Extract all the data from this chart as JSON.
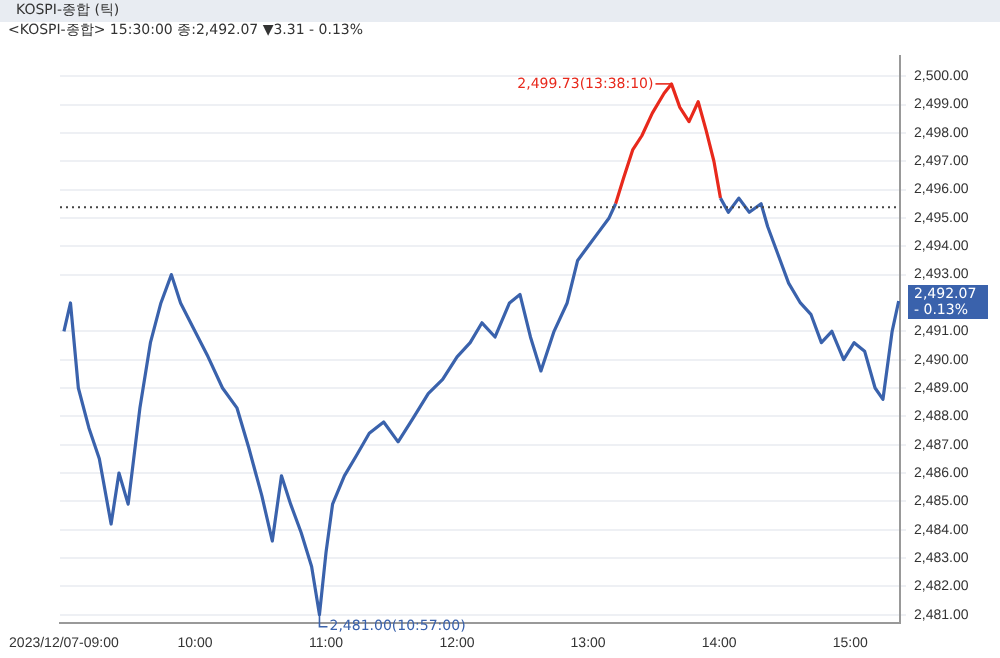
{
  "chart_data": {
    "type": "line",
    "title": "KOSPI-종합 (틱)",
    "subtitle": "<KOSPI-종합> 15:30:00 종:2,492.07 ▼3.31 - 0.13%",
    "x": [
      9.0,
      9.05,
      9.11,
      9.19,
      9.27,
      9.36,
      9.42,
      9.49,
      9.58,
      9.66,
      9.74,
      9.82,
      9.89,
      10.0,
      10.1,
      10.21,
      10.32,
      10.41,
      10.51,
      10.59,
      10.66,
      10.73,
      10.81,
      10.89,
      10.95,
      11.0,
      11.05,
      11.14,
      11.23,
      11.33,
      11.44,
      11.55,
      11.66,
      11.78,
      11.89,
      12.0,
      12.1,
      12.19,
      12.29,
      12.4,
      12.48,
      12.56,
      12.64,
      12.74,
      12.84,
      12.92,
      13.0,
      13.08,
      13.16,
      13.21,
      13.27,
      13.34,
      13.41,
      13.49,
      13.58,
      13.636,
      13.7,
      13.77,
      13.84,
      13.9,
      13.96,
      14.01,
      14.07,
      14.15,
      14.23,
      14.32,
      14.37,
      14.45,
      14.53,
      14.62,
      14.7,
      14.78,
      14.86,
      14.95,
      15.03,
      15.11,
      15.19,
      15.25,
      15.32,
      15.37
    ],
    "series": [
      {
        "color": "#3a62ac",
        "values": [
          2491.0,
          2492.0,
          2489.0,
          2487.6,
          2486.5,
          2484.2,
          2486.0,
          2484.9,
          2488.3,
          2490.6,
          2492.0,
          2493.0,
          2492.0,
          2491.0,
          2490.1,
          2489.0,
          2488.3,
          2486.9,
          2485.2,
          2483.6,
          2485.9,
          2484.9,
          2483.9,
          2482.7,
          2481.0,
          2483.2,
          2484.9,
          2485.9,
          2486.6,
          2487.4,
          2487.8,
          2487.1,
          2487.9,
          2488.8,
          2489.3,
          2490.1,
          2490.6,
          2491.3,
          2490.8,
          2492.0,
          2492.3,
          2490.8,
          2489.6,
          2491.0,
          2492.0,
          2493.5,
          2494.0,
          2494.5,
          2495.0,
          2495.5,
          null,
          null,
          null,
          null,
          null,
          null,
          null,
          null,
          null,
          null,
          null,
          2495.7,
          2495.2,
          2495.7,
          2495.2,
          2495.5,
          2494.7,
          2493.7,
          2492.7,
          2492.0,
          2491.6,
          2490.6,
          2491.0,
          2490.0,
          2490.6,
          2490.3,
          2489.0,
          2488.6,
          2491.0,
          2492.07
        ]
      },
      {
        "color": "#e8291c",
        "values": [
          null,
          null,
          null,
          null,
          null,
          null,
          null,
          null,
          null,
          null,
          null,
          null,
          null,
          null,
          null,
          null,
          null,
          null,
          null,
          null,
          null,
          null,
          null,
          null,
          null,
          null,
          null,
          null,
          null,
          null,
          null,
          null,
          null,
          null,
          null,
          null,
          null,
          null,
          null,
          null,
          null,
          null,
          null,
          null,
          null,
          null,
          null,
          null,
          null,
          2495.5,
          2496.4,
          2497.4,
          2497.9,
          2498.7,
          2499.4,
          2499.73,
          2498.9,
          2498.4,
          2499.1,
          2498.1,
          2497.0,
          2495.7,
          null,
          null,
          null,
          null,
          null,
          null,
          null,
          null,
          null,
          null,
          null,
          null,
          null,
          null,
          null,
          null,
          null,
          null
        ]
      }
    ],
    "xlim": [
      8.97,
      15.38
    ],
    "xticks": [
      {
        "value": 9,
        "label": "2023/12/07-09:00"
      },
      {
        "value": 10,
        "label": "10:00"
      },
      {
        "value": 11,
        "label": "11:00"
      },
      {
        "value": 12,
        "label": "12:00"
      },
      {
        "value": 13,
        "label": "13:00"
      },
      {
        "value": 14,
        "label": "14:00"
      },
      {
        "value": 15,
        "label": "15:00"
      }
    ],
    "ylim": [
      2480.7,
      2500.7
    ],
    "yticks": [
      {
        "value": 2481,
        "label": "2,481.00"
      },
      {
        "value": 2482,
        "label": "2,482.00"
      },
      {
        "value": 2483,
        "label": "2,483.00"
      },
      {
        "value": 2484,
        "label": "2,484.00"
      },
      {
        "value": 2485,
        "label": "2,485.00"
      },
      {
        "value": 2486,
        "label": "2,486.00"
      },
      {
        "value": 2487,
        "label": "2,487.00"
      },
      {
        "value": 2488,
        "label": "2,488.00"
      },
      {
        "value": 2489,
        "label": "2,489.00"
      },
      {
        "value": 2490,
        "label": "2,490.00"
      },
      {
        "value": 2491,
        "label": "2,491.00"
      },
      {
        "value": 2493,
        "label": "2,493.00"
      },
      {
        "value": 2494,
        "label": "2,494.00"
      },
      {
        "value": 2495,
        "label": "2,495.00"
      },
      {
        "value": 2496,
        "label": "2,496.00"
      },
      {
        "value": 2497,
        "label": "2,497.00"
      },
      {
        "value": 2498,
        "label": "2,498.00"
      },
      {
        "value": 2499,
        "label": "2,499.00"
      },
      {
        "value": 2500,
        "label": "2,500.00"
      }
    ],
    "ref_lines": [
      {
        "axis": "y",
        "value": 2495.38,
        "color": "#444444",
        "line_style": "dotted"
      }
    ],
    "annotations": [
      {
        "text": "2,499.73(13:38:10)",
        "x": 13.636,
        "y": 2499.73
      },
      {
        "text": "2,481.00(10:57:00)",
        "x": 10.95,
        "y": 2481.0
      },
      {
        "text": "2,492.07 - 0.13%",
        "x": 15.37,
        "y": 2492.07
      }
    ],
    "grid": "y",
    "marker": "none",
    "line_style": "solid",
    "legend": false
  }
}
